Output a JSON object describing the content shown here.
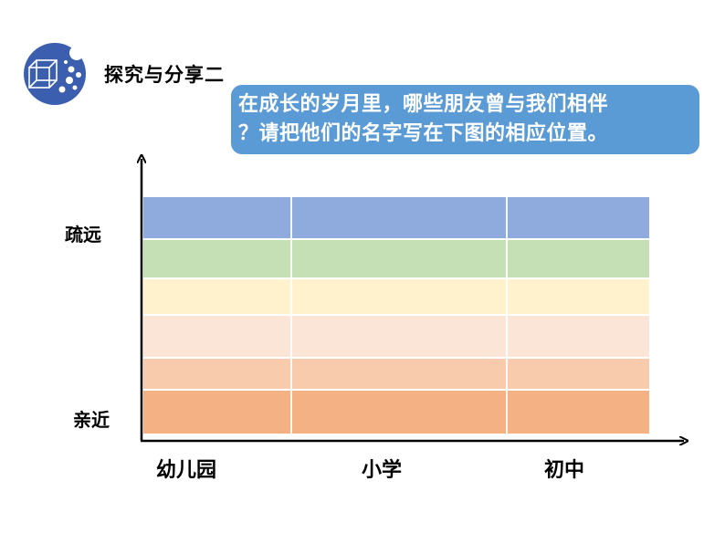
{
  "header": {
    "section_title": "探究与分享二",
    "logo_icon": "cube-dots-icon"
  },
  "prompt": {
    "line1": "在成长的岁月里，哪些朋友曾与我们相伴",
    "line2": "？请把他们的名字写在下图的相应位置。"
  },
  "chart_data": {
    "type": "table",
    "y_axis": {
      "top_label": "疏远",
      "bottom_label": "亲近"
    },
    "x_axis": {
      "categories": [
        "幼儿园",
        "小学",
        "初中"
      ]
    },
    "bands": [
      {
        "color": "#8faadc",
        "level": 1
      },
      {
        "color": "#c5e0b4",
        "level": 2
      },
      {
        "color": "#fff2cc",
        "level": 3
      },
      {
        "color": "#fbe5d6",
        "level": 4
      },
      {
        "color": "#f8cbad",
        "level": 5
      },
      {
        "color": "#f4b183",
        "level": 6
      }
    ]
  }
}
